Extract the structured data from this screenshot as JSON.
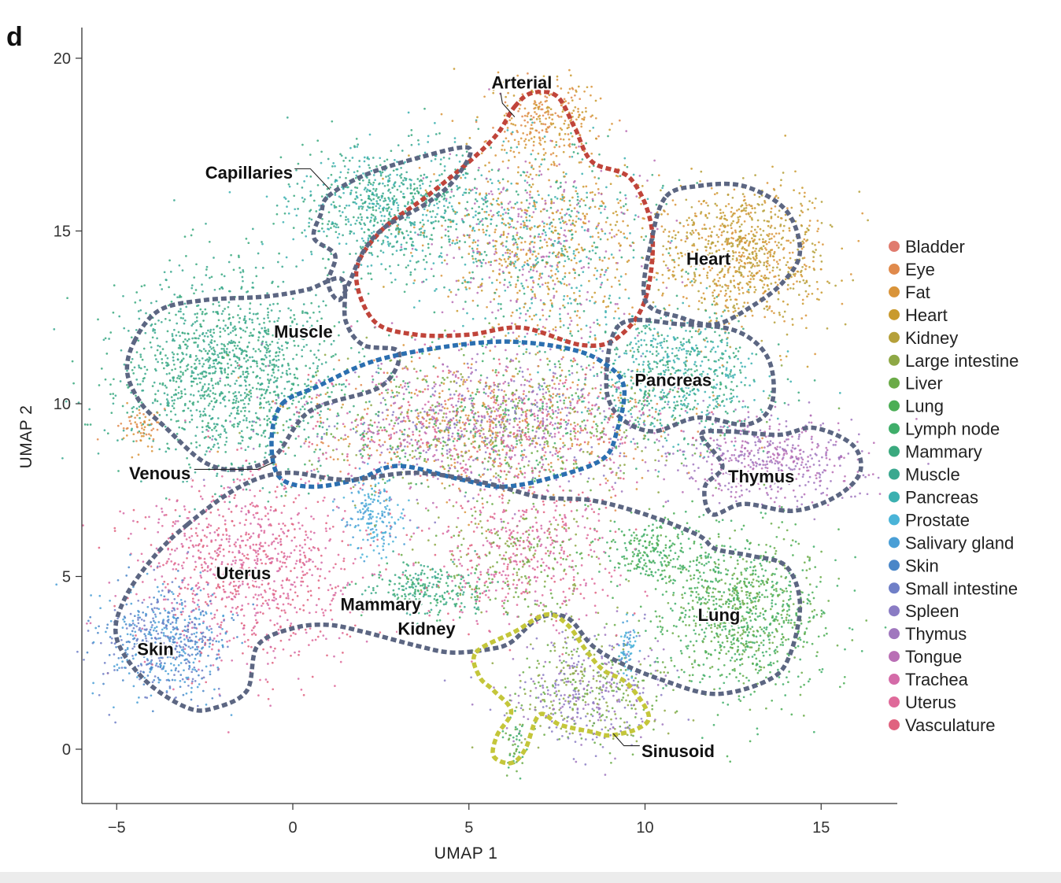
{
  "panel_letter": "d",
  "chart_data": {
    "type": "scatter",
    "title": "",
    "xlabel": "UMAP 1",
    "ylabel": "UMAP 2",
    "xlim": [
      -6,
      17.2
    ],
    "ylim": [
      -1.6,
      21
    ],
    "xticks": [
      -5,
      0,
      5,
      10,
      15
    ],
    "xtick_labels": [
      "−5",
      "0",
      "5",
      "10",
      "15"
    ],
    "yticks": [
      0,
      5,
      10,
      15,
      20
    ],
    "ytick_labels": [
      "0",
      "5",
      "10",
      "15",
      "20"
    ],
    "legend_position": "right",
    "series": [
      {
        "name": "Bladder",
        "color": "#e07b6e"
      },
      {
        "name": "Eye",
        "color": "#e08a4c"
      },
      {
        "name": "Fat",
        "color": "#d9943a"
      },
      {
        "name": "Heart",
        "color": "#c99a2e"
      },
      {
        "name": "Kidney",
        "color": "#b5a03a"
      },
      {
        "name": "Large intestine",
        "color": "#8ea845"
      },
      {
        "name": "Liver",
        "color": "#6bab48"
      },
      {
        "name": "Lung",
        "color": "#4bae55"
      },
      {
        "name": "Lymph node",
        "color": "#3fae6a"
      },
      {
        "name": "Mammary",
        "color": "#3aa97e"
      },
      {
        "name": "Muscle",
        "color": "#3aa88f"
      },
      {
        "name": "Pancreas",
        "color": "#3bb0b0"
      },
      {
        "name": "Prostate",
        "color": "#4ab4d8"
      },
      {
        "name": "Salivary gland",
        "color": "#4a9fd6"
      },
      {
        "name": "Skin",
        "color": "#4a86c8"
      },
      {
        "name": "Small intestine",
        "color": "#6f7fc7"
      },
      {
        "name": "Spleen",
        "color": "#8a7cc4"
      },
      {
        "name": "Thymus",
        "color": "#a077be"
      },
      {
        "name": "Tongue",
        "color": "#b96fb5"
      },
      {
        "name": "Trachea",
        "color": "#d46ba8"
      },
      {
        "name": "Uterus",
        "color": "#df6a9a"
      },
      {
        "name": "Vasculature",
        "color": "#e0627f"
      }
    ],
    "clusters": [
      {
        "mix": [
          "Muscle",
          "Mammary"
        ],
        "cx": -1.8,
        "cy": 11.0,
        "sx": 1.6,
        "sy": 1.4,
        "n": 1400
      },
      {
        "mix": [
          "Muscle",
          "Mammary",
          "Pancreas"
        ],
        "cx": 2.7,
        "cy": 15.7,
        "sx": 1.4,
        "sy": 0.9,
        "n": 800
      },
      {
        "mix": [
          "Fat",
          "Heart",
          "Eye"
        ],
        "cx": 7.2,
        "cy": 18.2,
        "sx": 0.7,
        "sy": 0.6,
        "n": 280
      },
      {
        "mix": [
          "Fat",
          "Heart",
          "Tongue",
          "Mammary",
          "Pancreas"
        ],
        "cx": 7.0,
        "cy": 14.6,
        "sx": 1.6,
        "sy": 1.5,
        "n": 1300
      },
      {
        "mix": [
          "Heart",
          "Fat",
          "Kidney"
        ],
        "cx": 12.8,
        "cy": 14.3,
        "sx": 1.2,
        "sy": 1.0,
        "n": 900
      },
      {
        "mix": [
          "Pancreas",
          "Mammary"
        ],
        "cx": 11.0,
        "cy": 10.8,
        "sx": 1.2,
        "sy": 0.9,
        "n": 700
      },
      {
        "mix": [
          "Thymus",
          "Tongue"
        ],
        "cx": 13.6,
        "cy": 8.4,
        "sx": 1.3,
        "sy": 0.6,
        "n": 500
      },
      {
        "mix": [
          "Vasculature",
          "Trachea",
          "Fat",
          "Eye",
          "Large intestine",
          "Liver",
          "Lymph node",
          "Tongue",
          "Thymus",
          "Spleen"
        ],
        "cx": 5.5,
        "cy": 9.4,
        "sx": 2.6,
        "sy": 1.0,
        "n": 2200
      },
      {
        "mix": [
          "Uterus",
          "Trachea",
          "Vasculature"
        ],
        "cx": -1.3,
        "cy": 5.3,
        "sx": 1.6,
        "sy": 1.4,
        "n": 1000
      },
      {
        "mix": [
          "Skin",
          "Salivary gland",
          "Small intestine"
        ],
        "cx": -3.6,
        "cy": 3.1,
        "sx": 0.9,
        "sy": 0.8,
        "n": 600
      },
      {
        "mix": [
          "Salivary gland",
          "Prostate"
        ],
        "cx": 2.3,
        "cy": 6.8,
        "sx": 0.4,
        "sy": 0.6,
        "n": 180
      },
      {
        "mix": [
          "Lung",
          "Lymph node",
          "Liver"
        ],
        "cx": 12.8,
        "cy": 3.9,
        "sx": 1.2,
        "sy": 1.2,
        "n": 1000
      },
      {
        "mix": [
          "Lung",
          "Lymph node"
        ],
        "cx": 10.3,
        "cy": 5.8,
        "sx": 0.8,
        "sy": 0.5,
        "n": 250
      },
      {
        "mix": [
          "Spleen",
          "Thymus",
          "Liver",
          "Large intestine"
        ],
        "cx": 8.3,
        "cy": 1.7,
        "sx": 1.1,
        "sy": 0.8,
        "n": 600
      },
      {
        "mix": [
          "Mammary",
          "Lymph node",
          "Muscle"
        ],
        "cx": 3.8,
        "cy": 4.6,
        "sx": 0.9,
        "sy": 0.4,
        "n": 250
      },
      {
        "mix": [
          "Vasculature",
          "Trachea",
          "Uterus",
          "Large intestine",
          "Liver"
        ],
        "cx": 6.5,
        "cy": 5.6,
        "sx": 1.4,
        "sy": 1.1,
        "n": 700
      },
      {
        "mix": [
          "Prostate",
          "Salivary gland"
        ],
        "cx": 9.5,
        "cy": 2.9,
        "sx": 0.15,
        "sy": 0.35,
        "n": 60
      },
      {
        "mix": [
          "Fat",
          "Eye"
        ],
        "cx": -4.3,
        "cy": 9.3,
        "sx": 0.3,
        "sy": 0.3,
        "n": 60
      },
      {
        "mix": [
          "Liver",
          "Lymph node"
        ],
        "cx": 6.3,
        "cy": 0.3,
        "sx": 0.15,
        "sy": 0.6,
        "n": 50
      }
    ],
    "regions": [
      {
        "name": "Arterial",
        "color": "#c0443a",
        "outline": [
          [
            6.3,
            18.6
          ],
          [
            6.8,
            19.0
          ],
          [
            7.5,
            18.9
          ],
          [
            8.0,
            18.0
          ],
          [
            8.5,
            17.0
          ],
          [
            9.6,
            16.5
          ],
          [
            10.2,
            15.0
          ],
          [
            10.0,
            13.0
          ],
          [
            9.2,
            11.9
          ],
          [
            8.2,
            11.7
          ],
          [
            6.5,
            12.2
          ],
          [
            5.0,
            12.0
          ],
          [
            3.5,
            12.0
          ],
          [
            2.3,
            12.4
          ],
          [
            1.8,
            13.8
          ],
          [
            2.5,
            15.0
          ],
          [
            3.8,
            16.0
          ],
          [
            5.0,
            17.0
          ],
          [
            5.8,
            17.8
          ]
        ],
        "label": "Arterial",
        "lx": 6.5,
        "ly": 19.3,
        "anchor": "middle",
        "leader": [
          [
            5.9,
            19.0
          ],
          [
            5.95,
            18.7
          ],
          [
            6.3,
            18.3
          ]
        ]
      },
      {
        "name": "Capillaries",
        "color": "#5c6682",
        "outline": [
          [
            1.0,
            16.0
          ],
          [
            2.0,
            16.6
          ],
          [
            3.5,
            17.1
          ],
          [
            5.0,
            17.4
          ],
          [
            4.6,
            16.5
          ],
          [
            3.8,
            15.8
          ],
          [
            2.6,
            15.1
          ],
          [
            2.0,
            14.4
          ],
          [
            1.6,
            13.5
          ],
          [
            1.3,
            13.0
          ],
          [
            1.0,
            13.5
          ],
          [
            1.2,
            14.3
          ],
          [
            0.6,
            14.8
          ],
          [
            0.8,
            15.5
          ]
        ],
        "label": "Capillaries",
        "lx": 0.0,
        "ly": 16.7,
        "anchor": "end",
        "leader": [
          [
            0.05,
            16.8
          ],
          [
            0.5,
            16.8
          ],
          [
            1.05,
            16.2
          ]
        ]
      },
      {
        "name": "Muscle",
        "color": "#5c6682",
        "outline": [
          [
            -4.5,
            11.8
          ],
          [
            -3.8,
            12.7
          ],
          [
            -2.5,
            13.0
          ],
          [
            -0.8,
            13.1
          ],
          [
            0.4,
            13.3
          ],
          [
            1.4,
            13.6
          ],
          [
            1.5,
            12.4
          ],
          [
            2.0,
            11.7
          ],
          [
            3.0,
            11.5
          ],
          [
            2.5,
            10.5
          ],
          [
            0.5,
            9.8
          ],
          [
            -0.5,
            8.5
          ],
          [
            -1.5,
            8.1
          ],
          [
            -2.5,
            8.3
          ],
          [
            -3.6,
            9.3
          ],
          [
            -4.3,
            10.0
          ],
          [
            -4.7,
            10.9
          ]
        ],
        "label": "Muscle",
        "lx": 0.3,
        "ly": 12.1,
        "anchor": "middle",
        "leader": []
      },
      {
        "name": "Heart",
        "color": "#5c6682",
        "outline": [
          [
            10.6,
            16.0
          ],
          [
            11.5,
            16.3
          ],
          [
            12.8,
            16.3
          ],
          [
            14.0,
            15.6
          ],
          [
            14.4,
            14.4
          ],
          [
            13.9,
            13.5
          ],
          [
            13.0,
            12.8
          ],
          [
            12.0,
            12.3
          ],
          [
            11.0,
            12.5
          ],
          [
            10.0,
            13.0
          ],
          [
            10.2,
            14.8
          ]
        ],
        "label": "Heart",
        "lx": 11.8,
        "ly": 14.2,
        "anchor": "middle",
        "leader": []
      },
      {
        "name": "Pancreas",
        "color": "#5c6682",
        "outline": [
          [
            9.3,
            12.3
          ],
          [
            11.0,
            12.3
          ],
          [
            12.6,
            12.1
          ],
          [
            13.5,
            11.3
          ],
          [
            13.6,
            10.0
          ],
          [
            12.9,
            9.4
          ],
          [
            11.5,
            9.6
          ],
          [
            10.2,
            9.2
          ],
          [
            9.2,
            9.7
          ],
          [
            8.9,
            10.7
          ]
        ],
        "label": "Pancreas",
        "lx": 10.8,
        "ly": 10.7,
        "anchor": "middle",
        "leader": []
      },
      {
        "name": "Thymus",
        "color": "#5c6682",
        "outline": [
          [
            11.6,
            9.1
          ],
          [
            12.3,
            9.2
          ],
          [
            13.8,
            9.1
          ],
          [
            14.8,
            9.3
          ],
          [
            15.9,
            8.8
          ],
          [
            16.1,
            8.0
          ],
          [
            15.4,
            7.3
          ],
          [
            14.2,
            6.9
          ],
          [
            12.8,
            7.1
          ],
          [
            11.9,
            6.8
          ],
          [
            11.7,
            7.6
          ],
          [
            12.2,
            8.2
          ]
        ],
        "label": "Thymus",
        "lx": 13.3,
        "ly": 7.9,
        "anchor": "middle",
        "leader": []
      },
      {
        "name": "Venous",
        "color": "#2b6fb0",
        "outline": [
          [
            -0.3,
            10.0
          ],
          [
            0.7,
            10.5
          ],
          [
            2.2,
            11.2
          ],
          [
            4.0,
            11.6
          ],
          [
            6.0,
            11.8
          ],
          [
            7.8,
            11.6
          ],
          [
            8.8,
            11.2
          ],
          [
            9.4,
            10.5
          ],
          [
            9.2,
            9.2
          ],
          [
            8.8,
            8.4
          ],
          [
            7.5,
            7.9
          ],
          [
            6.0,
            7.6
          ],
          [
            4.8,
            7.8
          ],
          [
            3.0,
            8.2
          ],
          [
            1.8,
            7.8
          ],
          [
            0.5,
            7.6
          ],
          [
            -0.4,
            7.9
          ],
          [
            -0.6,
            9.0
          ]
        ],
        "label": "Venous",
        "lx": -2.9,
        "ly": 8.0,
        "anchor": "end",
        "leader": [
          [
            -2.8,
            8.1
          ],
          [
            -1.0,
            8.1
          ],
          [
            -0.55,
            8.3
          ]
        ]
      },
      {
        "name": "Uterus-Skin",
        "color": "#5c6682",
        "outline": [
          [
            -3.0,
            6.5
          ],
          [
            -1.5,
            7.6
          ],
          [
            -0.2,
            8.0
          ],
          [
            1.5,
            7.8
          ],
          [
            3.5,
            8.0
          ],
          [
            5.5,
            7.7
          ],
          [
            7.0,
            7.3
          ],
          [
            8.5,
            7.2
          ],
          [
            10.0,
            6.8
          ],
          [
            11.5,
            6.2
          ],
          [
            12.0,
            5.8
          ],
          [
            13.0,
            5.6
          ],
          [
            14.0,
            5.3
          ],
          [
            14.4,
            4.2
          ],
          [
            14.1,
            2.7
          ],
          [
            13.5,
            2.0
          ],
          [
            12.0,
            1.6
          ],
          [
            10.5,
            2.0
          ],
          [
            9.3,
            2.5
          ],
          [
            8.5,
            3.0
          ],
          [
            7.8,
            3.8
          ],
          [
            7.0,
            3.8
          ],
          [
            6.2,
            3.1
          ],
          [
            5.6,
            2.9
          ],
          [
            4.5,
            2.8
          ],
          [
            3.5,
            3.0
          ],
          [
            2.0,
            3.4
          ],
          [
            1.0,
            3.6
          ],
          [
            0.0,
            3.5
          ],
          [
            -1.0,
            3.0
          ],
          [
            -1.3,
            1.7
          ],
          [
            -2.2,
            1.2
          ],
          [
            -3.0,
            1.2
          ],
          [
            -4.2,
            2.0
          ],
          [
            -5.0,
            3.2
          ],
          [
            -4.8,
            4.3
          ],
          [
            -4.0,
            5.5
          ]
        ],
        "label": "Uterus",
        "lx": -1.4,
        "ly": 5.1,
        "anchor": "middle",
        "leader": []
      },
      {
        "name": "Sinusoid",
        "color": "#c4c63a",
        "outline": [
          [
            5.2,
            2.8
          ],
          [
            6.3,
            3.4
          ],
          [
            7.2,
            3.9
          ],
          [
            7.8,
            3.6
          ],
          [
            8.3,
            2.9
          ],
          [
            8.8,
            2.3
          ],
          [
            9.5,
            1.9
          ],
          [
            10.1,
            1.0
          ],
          [
            9.8,
            0.6
          ],
          [
            9.0,
            0.4
          ],
          [
            8.5,
            0.5
          ],
          [
            7.6,
            0.7
          ],
          [
            7.0,
            1.0
          ],
          [
            6.6,
            0.0
          ],
          [
            6.2,
            -0.4
          ],
          [
            5.7,
            -0.2
          ],
          [
            5.8,
            0.4
          ],
          [
            6.2,
            1.1
          ],
          [
            5.7,
            1.7
          ],
          [
            5.3,
            2.1
          ]
        ],
        "label": "Sinusoid",
        "lx": 9.9,
        "ly": -0.05,
        "anchor": "start",
        "leader": [
          [
            9.85,
            0.1
          ],
          [
            9.4,
            0.1
          ],
          [
            9.1,
            0.45
          ]
        ]
      }
    ],
    "annotations": [
      {
        "text": "Muscle",
        "x": 0.3,
        "y": 12.1
      },
      {
        "text": "Skin",
        "x": -3.9,
        "y": 2.9
      },
      {
        "text": "Mammary",
        "x": 2.5,
        "y": 4.2
      },
      {
        "text": "Kidney",
        "x": 3.8,
        "y": 3.5
      },
      {
        "text": "Lung",
        "x": 12.1,
        "y": 3.9
      }
    ]
  }
}
